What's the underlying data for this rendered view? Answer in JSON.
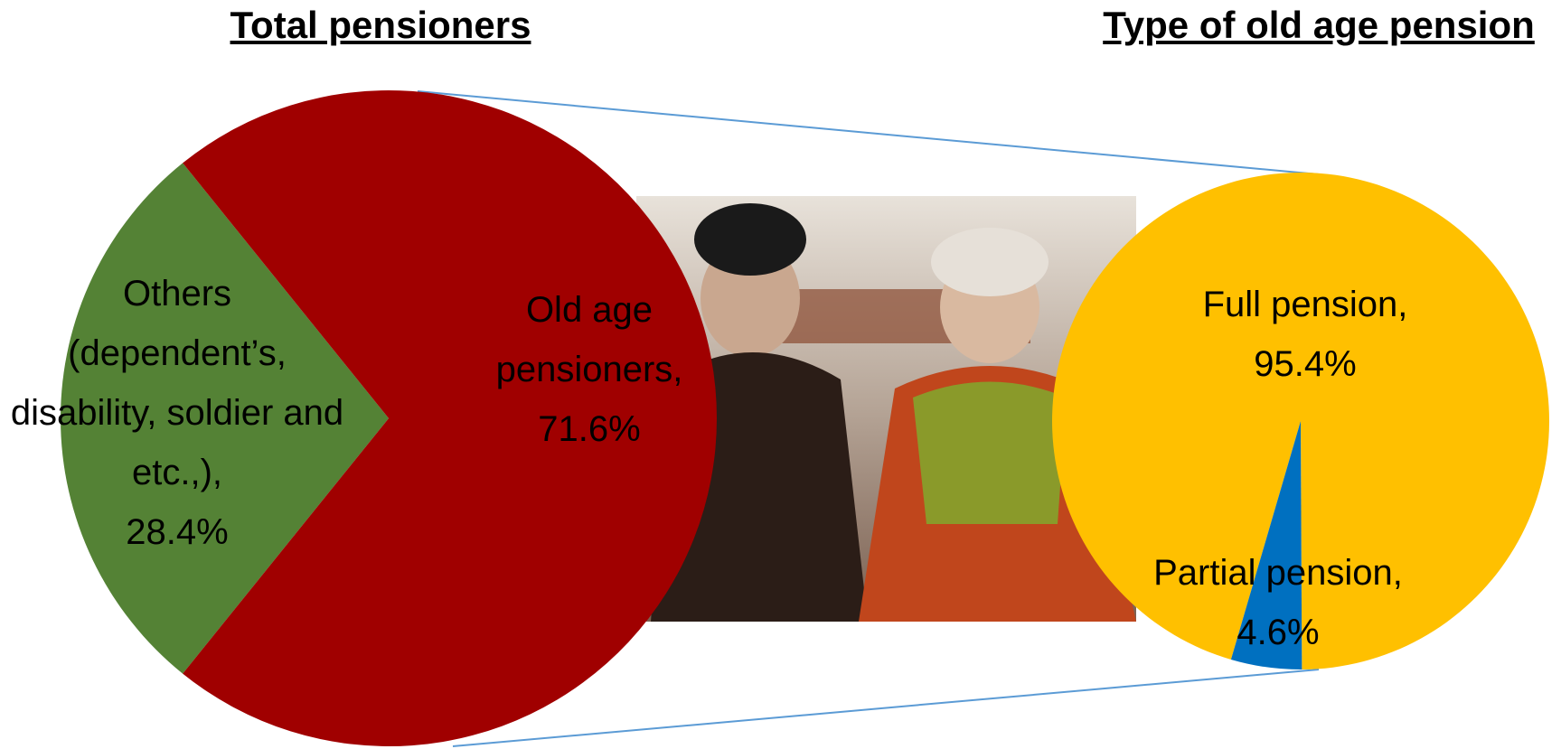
{
  "chart_data": [
    {
      "type": "pie",
      "title": "Total pensioners",
      "categories": [
        "Others (dependent’s, disability, soldier and etc.,),",
        "Old age pensioners,"
      ],
      "values": [
        28.4,
        71.6
      ],
      "value_labels": [
        "28.4%",
        "71.6%"
      ],
      "colors": [
        "#548235",
        "#a00000"
      ]
    },
    {
      "type": "pie",
      "title": "Type of old age pension",
      "categories": [
        "Full pension,",
        "Partial pension,"
      ],
      "values": [
        95.4,
        4.6
      ],
      "value_labels": [
        "95.4%",
        "4.6%"
      ],
      "colors": [
        "#ffc000",
        "#0070c0"
      ]
    }
  ]
}
